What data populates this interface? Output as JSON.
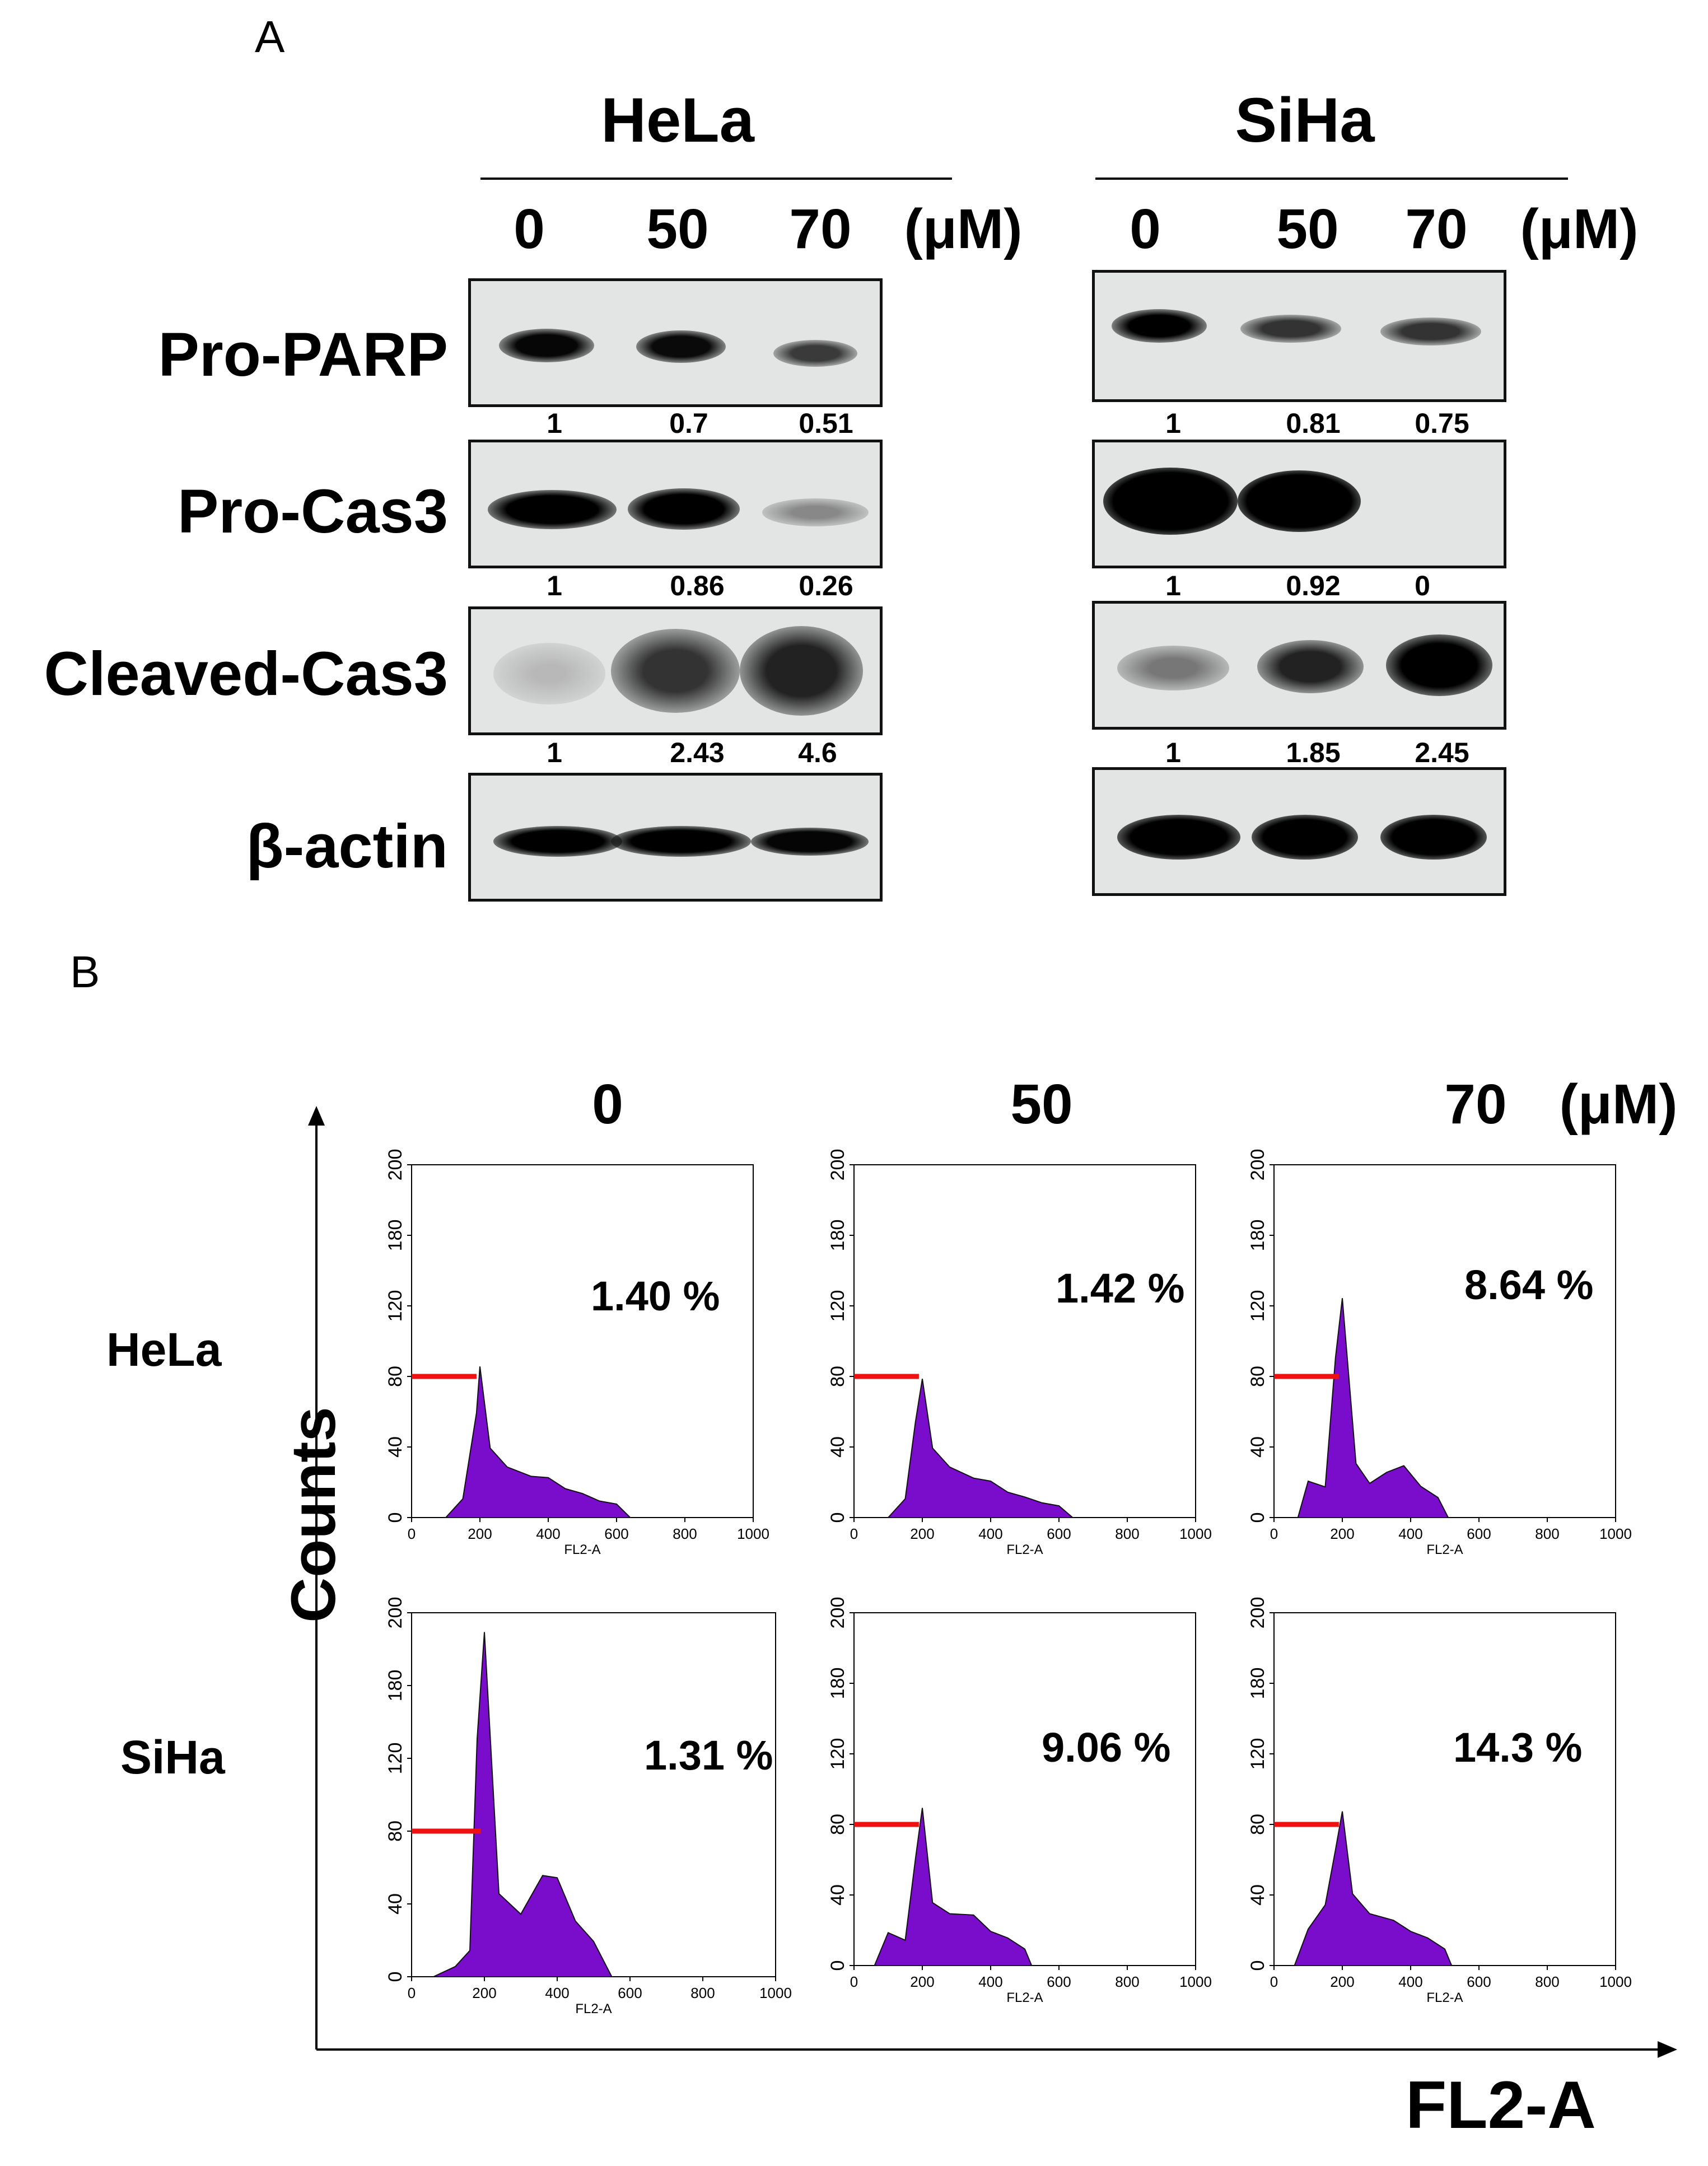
{
  "panel_a": {
    "label": "A",
    "cell_lines": [
      "HeLa",
      "SiHa"
    ],
    "concentrations": [
      "0",
      "50",
      "70"
    ],
    "unit": "(μM)",
    "proteins": [
      "Pro-PARP",
      "Pro-Cas3",
      "Cleaved-Cas3",
      "β-actin"
    ],
    "quantification": {
      "hela": {
        "pro_parp": [
          "1",
          "0.7",
          "0.51"
        ],
        "pro_cas3": [
          "1",
          "0.86",
          "0.26"
        ],
        "cleaved_cas3": [
          "1",
          "2.43",
          "4.6"
        ]
      },
      "siha": {
        "pro_parp": [
          "1",
          "0.81",
          "0.75"
        ],
        "pro_cas3": [
          "1",
          "0.92",
          "0"
        ],
        "cleaved_cas3": [
          "1",
          "1.85",
          "2.45"
        ]
      }
    }
  },
  "panel_b": {
    "label": "B",
    "concentrations": [
      "0",
      "50",
      "70"
    ],
    "unit": "(μM)",
    "row_labels": [
      "HeLa",
      "SiHa"
    ],
    "y_axis_title": "Counts",
    "x_axis_title": "FL2-A",
    "histogram_xlabel": "FL2-A",
    "x_ticks": [
      "0",
      "200",
      "400",
      "600",
      "800",
      "1000"
    ],
    "y_ticks": [
      "0",
      "40",
      "80",
      "120",
      "180",
      "200"
    ],
    "percentages": {
      "hela": [
        "1.40 %",
        "1.42 %",
        "8.64 %"
      ],
      "siha": [
        "1.31 %",
        "9.06 %",
        "14.3 %"
      ]
    },
    "colors": {
      "fill": "#7a0dcc",
      "gate": "#ee1111"
    }
  },
  "chart_data": [
    {
      "type": "area",
      "title": "HeLa 0 μM",
      "xlabel": "FL2-A",
      "ylabel": "Counts",
      "xlim": [
        0,
        1000
      ],
      "ylim": [
        0,
        200
      ],
      "x": [
        100,
        150,
        190,
        200,
        230,
        280,
        350,
        400,
        450,
        500,
        550,
        600,
        640
      ],
      "y": [
        0,
        10,
        60,
        85,
        40,
        28,
        24,
        22,
        17,
        13,
        10,
        7,
        0
      ],
      "annotation": "1.40 %",
      "gate_level": 80
    },
    {
      "type": "area",
      "title": "HeLa 50 μM",
      "xlabel": "FL2-A",
      "ylabel": "Counts",
      "xlim": [
        0,
        1000
      ],
      "ylim": [
        0,
        200
      ],
      "x": [
        100,
        150,
        180,
        200,
        230,
        280,
        350,
        400,
        450,
        500,
        550,
        600,
        640
      ],
      "y": [
        0,
        10,
        55,
        78,
        40,
        28,
        23,
        20,
        15,
        11,
        9,
        6,
        0
      ],
      "annotation": "1.42 %",
      "gate_level": 80
    },
    {
      "type": "area",
      "title": "HeLa 70 μM",
      "xlabel": "FL2-A",
      "ylabel": "Counts",
      "xlim": [
        0,
        1000
      ],
      "ylim": [
        0,
        200
      ],
      "x": [
        70,
        100,
        150,
        180,
        200,
        240,
        280,
        330,
        380,
        430,
        480,
        510
      ],
      "y": [
        0,
        20,
        18,
        90,
        125,
        30,
        20,
        25,
        30,
        17,
        12,
        0
      ],
      "annotation": "8.64 %",
      "gate_level": 80
    },
    {
      "type": "area",
      "title": "SiHa 0 μM",
      "xlabel": "FL2-A",
      "ylabel": "Counts",
      "xlim": [
        0,
        1000
      ],
      "ylim": [
        0,
        200
      ],
      "x": [
        60,
        120,
        160,
        180,
        200,
        240,
        300,
        360,
        400,
        450,
        500,
        550
      ],
      "y": [
        0,
        5,
        15,
        130,
        190,
        45,
        35,
        55,
        55,
        30,
        20,
        0
      ],
      "annotation": "1.31 %",
      "gate_level": 80
    },
    {
      "type": "area",
      "title": "SiHa 50 μM",
      "xlabel": "FL2-A",
      "ylabel": "Counts",
      "xlim": [
        0,
        1000
      ],
      "ylim": [
        0,
        200
      ],
      "x": [
        60,
        100,
        150,
        180,
        200,
        230,
        280,
        350,
        400,
        450,
        500,
        520
      ],
      "y": [
        0,
        18,
        15,
        60,
        90,
        35,
        30,
        28,
        20,
        15,
        10,
        0
      ],
      "annotation": "9.06 %",
      "gate_level": 80
    },
    {
      "type": "area",
      "title": "SiHa 70 μM",
      "xlabel": "FL2-A",
      "ylabel": "Counts",
      "xlim": [
        0,
        1000
      ],
      "ylim": [
        0,
        200
      ],
      "x": [
        60,
        100,
        150,
        180,
        200,
        230,
        280,
        350,
        400,
        450,
        500,
        520
      ],
      "y": [
        0,
        20,
        35,
        65,
        88,
        40,
        30,
        25,
        20,
        15,
        10,
        0
      ],
      "annotation": "14.3 %",
      "gate_level": 80
    }
  ]
}
